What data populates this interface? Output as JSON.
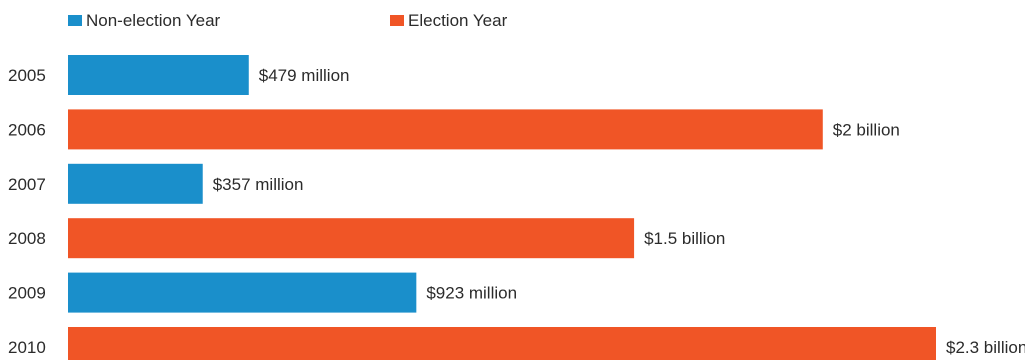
{
  "chart_data": {
    "type": "bar",
    "orientation": "horizontal",
    "categories": [
      "2005",
      "2006",
      "2007",
      "2008",
      "2009",
      "2010"
    ],
    "values": [
      479,
      2000,
      357,
      1500,
      923,
      2300
    ],
    "value_unit": "million USD",
    "data_labels": [
      "$479 million",
      "$2 billion",
      "$357 million",
      "$1.5 billion",
      "$923 million",
      "$2.3 billion"
    ],
    "bar_series": [
      "Non-election Year",
      "Election Year",
      "Non-election Year",
      "Election Year",
      "Non-election Year",
      "Election Year"
    ],
    "legend": [
      {
        "name": "Non-election Year",
        "color": "#1a8fcb"
      },
      {
        "name": "Election Year",
        "color": "#f05526"
      }
    ],
    "legend_position": "top-left",
    "grid": false,
    "xlim": [
      0,
      2300
    ]
  }
}
